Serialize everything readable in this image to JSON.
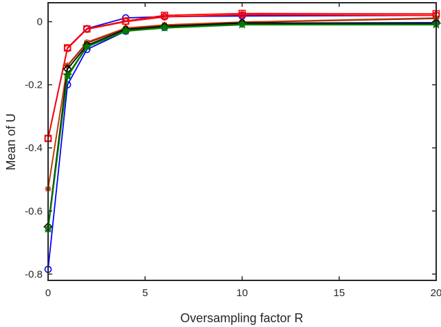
{
  "chart_data": {
    "type": "line",
    "title": "",
    "xlabel": "Oversampling factor  R",
    "ylabel": "Mean of  U",
    "xlim": [
      0,
      20
    ],
    "ylim": [
      -0.82,
      0.06
    ],
    "xticks": [
      0,
      5,
      10,
      15,
      20
    ],
    "xtick_labels": [
      "0",
      "5",
      "10",
      "15",
      "20"
    ],
    "yticks": [
      0,
      -0.2,
      -0.4,
      -0.6,
      -0.8
    ],
    "ytick_labels": [
      "0",
      "-0.2",
      "-0.4",
      "-0.6",
      "-0.8"
    ],
    "grid": false,
    "legend": "none",
    "x": [
      0,
      1,
      2,
      4,
      6,
      10,
      20
    ],
    "series": [
      {
        "color": "#0000ff",
        "marker": "circle",
        "values": [
          -0.785,
          -0.2,
          -0.088,
          -0.03,
          -0.018,
          -0.005,
          -0.003
        ]
      },
      {
        "color": "#0000ff",
        "marker": "circle",
        "values": [
          -0.37,
          -0.083,
          -0.022,
          0.012,
          0.016,
          0.018,
          0.02
        ]
      },
      {
        "color": "#ff0000",
        "marker": "circle",
        "values": [
          -0.37,
          -0.085,
          -0.024,
          0.0,
          0.015,
          0.022,
          0.02
        ]
      },
      {
        "color": "#ff0000",
        "marker": "square",
        "values": [
          -0.37,
          -0.083,
          -0.023,
          0.002,
          0.02,
          0.026,
          0.025
        ]
      },
      {
        "color": "#8b0000",
        "marker": "asterisk",
        "values": [
          -0.53,
          -0.14,
          -0.068,
          -0.022,
          -0.012,
          -0.002,
          0.01
        ]
      },
      {
        "color": "#c04000",
        "marker": "asterisk",
        "values": [
          -0.53,
          -0.138,
          -0.065,
          -0.02,
          -0.01,
          -0.001,
          0.012
        ]
      },
      {
        "color": "#000000",
        "marker": "diamond",
        "values": [
          -0.65,
          -0.15,
          -0.075,
          -0.025,
          -0.015,
          -0.004,
          -0.005
        ]
      },
      {
        "color": "#006400",
        "marker": "star",
        "values": [
          -0.655,
          -0.17,
          -0.078,
          -0.028,
          -0.018,
          -0.008,
          -0.008
        ]
      },
      {
        "color": "#008000",
        "marker": "asterisk",
        "values": [
          -0.66,
          -0.175,
          -0.08,
          -0.03,
          -0.02,
          -0.01,
          -0.01
        ]
      }
    ]
  }
}
